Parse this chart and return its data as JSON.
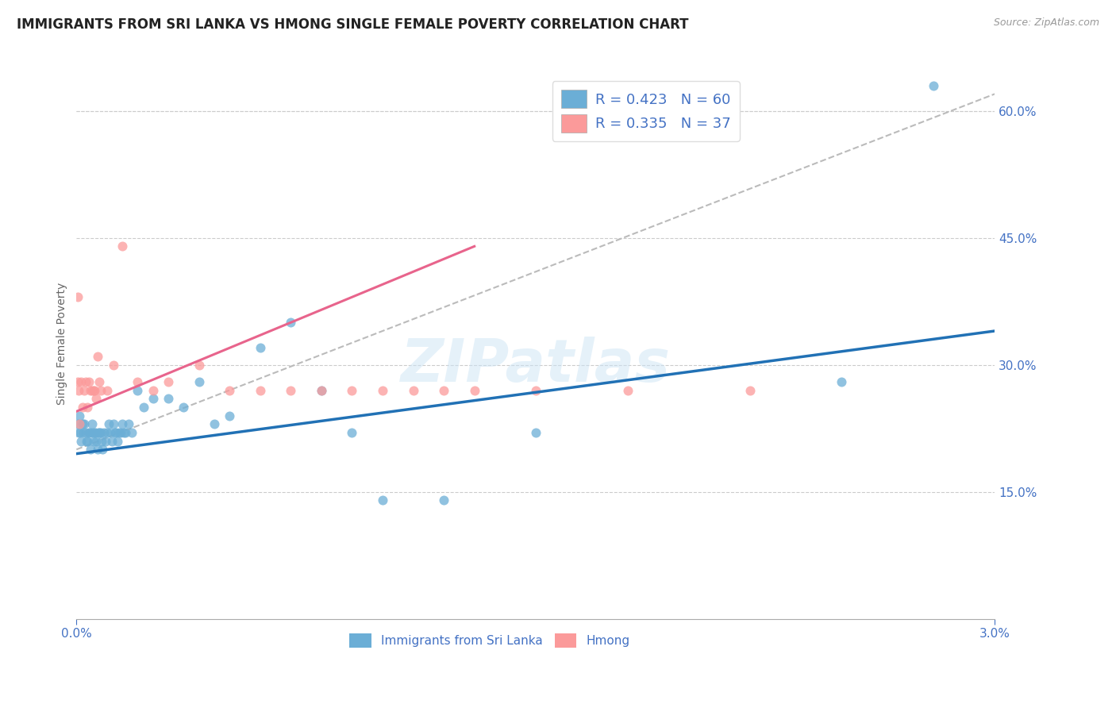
{
  "title": "IMMIGRANTS FROM SRI LANKA VS HMONG SINGLE FEMALE POVERTY CORRELATION CHART",
  "source": "Source: ZipAtlas.com",
  "ylabel": "Single Female Poverty",
  "watermark": "ZIPatlas",
  "x_min": 0.0,
  "x_max": 0.03,
  "y_min": 0.0,
  "y_max": 0.65,
  "y_ticks": [
    0.15,
    0.3,
    0.45,
    0.6
  ],
  "y_tick_labels": [
    "15.0%",
    "30.0%",
    "45.0%",
    "60.0%"
  ],
  "sri_lanka_color": "#6baed6",
  "hmong_color": "#fb9a9a",
  "sri_lanka_line_color": "#2171b5",
  "hmong_line_color": "#e8648c",
  "ref_line_color": "#bbbbbb",
  "sri_lanka_R": 0.423,
  "sri_lanka_N": 60,
  "hmong_R": 0.335,
  "hmong_N": 37,
  "sri_lanka_x": [
    5e-05,
    8e-05,
    0.0001,
    0.00012,
    0.00015,
    0.0002,
    0.00022,
    0.00025,
    0.0003,
    0.00032,
    0.00035,
    0.0004,
    0.00042,
    0.00045,
    0.0005,
    0.00052,
    0.00055,
    0.0006,
    0.00062,
    0.00065,
    0.0007,
    0.00072,
    0.00075,
    0.0008,
    0.00082,
    0.00085,
    0.0009,
    0.00095,
    0.001,
    0.00105,
    0.0011,
    0.00115,
    0.0012,
    0.00125,
    0.0013,
    0.00135,
    0.0014,
    0.00145,
    0.0015,
    0.00155,
    0.0016,
    0.0017,
    0.0018,
    0.002,
    0.0022,
    0.0025,
    0.003,
    0.0035,
    0.004,
    0.0045,
    0.005,
    0.006,
    0.007,
    0.008,
    0.009,
    0.01,
    0.012,
    0.015,
    0.025,
    0.028
  ],
  "sri_lanka_y": [
    0.23,
    0.22,
    0.24,
    0.22,
    0.21,
    0.23,
    0.22,
    0.23,
    0.22,
    0.21,
    0.21,
    0.22,
    0.22,
    0.2,
    0.22,
    0.23,
    0.21,
    0.22,
    0.22,
    0.21,
    0.2,
    0.22,
    0.22,
    0.22,
    0.21,
    0.2,
    0.22,
    0.21,
    0.22,
    0.23,
    0.22,
    0.21,
    0.23,
    0.22,
    0.22,
    0.21,
    0.22,
    0.22,
    0.23,
    0.22,
    0.22,
    0.23,
    0.22,
    0.27,
    0.25,
    0.26,
    0.26,
    0.25,
    0.28,
    0.23,
    0.24,
    0.32,
    0.35,
    0.27,
    0.22,
    0.14,
    0.14,
    0.22,
    0.28,
    0.63
  ],
  "hmong_x": [
    3e-05,
    5e-05,
    8e-05,
    0.0001,
    0.00015,
    0.0002,
    0.00025,
    0.0003,
    0.00035,
    0.0004,
    0.00045,
    0.0005,
    0.00055,
    0.0006,
    0.00065,
    0.0007,
    0.00075,
    0.0008,
    0.001,
    0.0012,
    0.0015,
    0.002,
    0.0025,
    0.003,
    0.004,
    0.005,
    0.006,
    0.007,
    0.008,
    0.009,
    0.01,
    0.011,
    0.012,
    0.013,
    0.015,
    0.018,
    0.022
  ],
  "hmong_y": [
    0.38,
    0.28,
    0.27,
    0.23,
    0.28,
    0.25,
    0.27,
    0.28,
    0.25,
    0.28,
    0.27,
    0.27,
    0.27,
    0.27,
    0.26,
    0.31,
    0.28,
    0.27,
    0.27,
    0.3,
    0.44,
    0.28,
    0.27,
    0.28,
    0.3,
    0.27,
    0.27,
    0.27,
    0.27,
    0.27,
    0.27,
    0.27,
    0.27,
    0.27,
    0.27,
    0.27,
    0.27
  ],
  "background_color": "#ffffff",
  "grid_color": "#cccccc",
  "title_fontsize": 12,
  "tick_label_color": "#4472c4",
  "right_axis_color": "#4472c4"
}
